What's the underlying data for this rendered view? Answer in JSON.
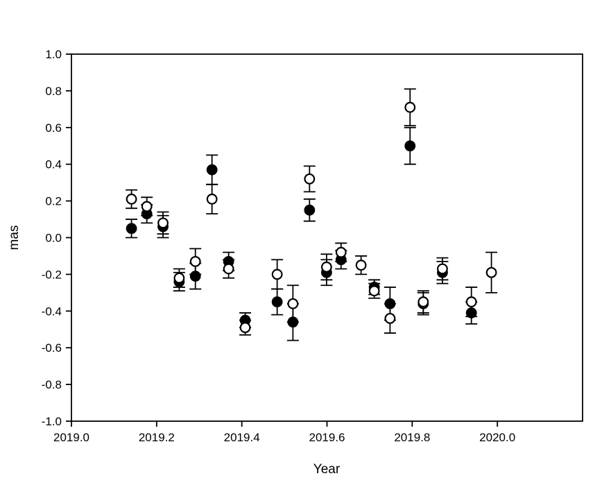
{
  "chart_data": {
    "type": "scatter",
    "title": "",
    "xlabel": "Year",
    "ylabel": "mas",
    "xlim": [
      2019.0,
      2020.2
    ],
    "ylim": [
      -1.0,
      1.0
    ],
    "x_ticks": [
      2019.0,
      2019.2,
      2019.4,
      2019.6,
      2019.8,
      2020.0
    ],
    "x_tick_labels": [
      "2019.0",
      "2019.2",
      "2019.4",
      "2019.6",
      "2019.8",
      "2020.0"
    ],
    "y_ticks": [
      1.0,
      0.8,
      0.6,
      0.4,
      0.2,
      0.0,
      -0.2,
      -0.4,
      -0.6,
      -0.8,
      -1.0
    ],
    "y_tick_labels": [
      "1.0",
      "0.8",
      "0.6",
      "0.4",
      "0.2",
      "0.0",
      "-0.2",
      "-0.4",
      "-0.6",
      "-0.8",
      "-1.0"
    ],
    "grid": false,
    "legend": "none",
    "marker_color": "#000000",
    "open_marker_fill": "#ffffff",
    "series": [
      {
        "name": "filled-circles",
        "marker": "filled-circle",
        "points": [
          {
            "x": 2019.141,
            "y": 0.05,
            "e": 0.05
          },
          {
            "x": 2019.177,
            "y": 0.13,
            "e": 0.05
          },
          {
            "x": 2019.215,
            "y": 0.06,
            "e": 0.06
          },
          {
            "x": 2019.253,
            "y": -0.24,
            "e": 0.05
          },
          {
            "x": 2019.291,
            "y": -0.21,
            "e": 0.07
          },
          {
            "x": 2019.33,
            "y": 0.37,
            "e": 0.08
          },
          {
            "x": 2019.369,
            "y": -0.13,
            "e": 0.05
          },
          {
            "x": 2019.408,
            "y": -0.45,
            "e": 0.04
          },
          {
            "x": 2019.483,
            "y": -0.35,
            "e": 0.07
          },
          {
            "x": 2019.52,
            "y": -0.46,
            "e": 0.1
          },
          {
            "x": 2019.559,
            "y": 0.15,
            "e": 0.06
          },
          {
            "x": 2019.599,
            "y": -0.19,
            "e": 0.07
          },
          {
            "x": 2019.633,
            "y": -0.12,
            "e": 0.05
          },
          {
            "x": 2019.711,
            "y": -0.27,
            "e": 0.04
          },
          {
            "x": 2019.748,
            "y": -0.36,
            "e": 0.09
          },
          {
            "x": 2019.795,
            "y": 0.5,
            "e": 0.1
          },
          {
            "x": 2019.826,
            "y": -0.36,
            "e": 0.06
          },
          {
            "x": 2019.871,
            "y": -0.19,
            "e": 0.06
          },
          {
            "x": 2019.939,
            "y": -0.41,
            "e": 0.06
          }
        ]
      },
      {
        "name": "open-circles",
        "marker": "open-circle",
        "points": [
          {
            "x": 2019.141,
            "y": 0.21,
            "e": 0.05
          },
          {
            "x": 2019.177,
            "y": 0.17,
            "e": 0.05
          },
          {
            "x": 2019.215,
            "y": 0.08,
            "e": 0.06
          },
          {
            "x": 2019.253,
            "y": -0.22,
            "e": 0.05
          },
          {
            "x": 2019.291,
            "y": -0.13,
            "e": 0.07
          },
          {
            "x": 2019.33,
            "y": 0.21,
            "e": 0.08
          },
          {
            "x": 2019.369,
            "y": -0.17,
            "e": 0.05
          },
          {
            "x": 2019.408,
            "y": -0.49,
            "e": 0.04
          },
          {
            "x": 2019.483,
            "y": -0.2,
            "e": 0.08
          },
          {
            "x": 2019.52,
            "y": -0.36,
            "e": 0.1
          },
          {
            "x": 2019.559,
            "y": 0.32,
            "e": 0.07
          },
          {
            "x": 2019.599,
            "y": -0.16,
            "e": 0.07
          },
          {
            "x": 2019.633,
            "y": -0.08,
            "e": 0.05
          },
          {
            "x": 2019.68,
            "y": -0.15,
            "e": 0.05
          },
          {
            "x": 2019.711,
            "y": -0.29,
            "e": 0.04
          },
          {
            "x": 2019.748,
            "y": -0.44,
            "e": 0.08
          },
          {
            "x": 2019.795,
            "y": 0.71,
            "e": 0.1
          },
          {
            "x": 2019.826,
            "y": -0.35,
            "e": 0.06
          },
          {
            "x": 2019.871,
            "y": -0.17,
            "e": 0.06
          },
          {
            "x": 2019.939,
            "y": -0.35,
            "e": 0.08
          },
          {
            "x": 2019.986,
            "y": -0.19,
            "e": 0.11
          }
        ]
      }
    ]
  }
}
